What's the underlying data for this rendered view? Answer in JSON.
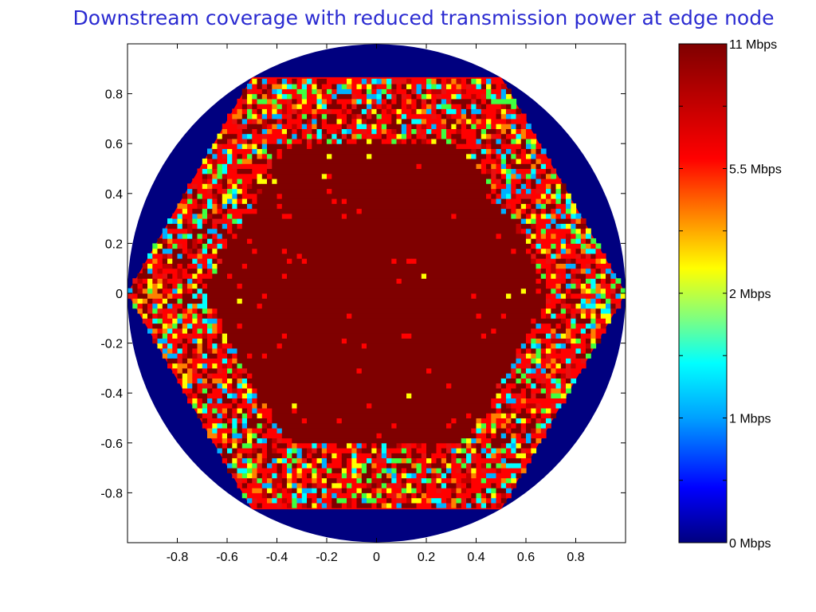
{
  "chart_data": {
    "type": "heatmap",
    "title": "Downstream coverage with reduced transmission power at edge node",
    "xlim": [
      -1,
      1
    ],
    "ylim": [
      -1,
      1
    ],
    "x_ticks": [
      -0.8,
      -0.6,
      -0.4,
      -0.2,
      0,
      0.2,
      0.4,
      0.6,
      0.8
    ],
    "y_ticks": [
      0.8,
      0.6,
      0.4,
      0.2,
      0,
      -0.2,
      -0.4,
      -0.6,
      -0.8
    ],
    "x_tick_labels": [
      "-0.8",
      "-0.6",
      "-0.4",
      "-0.2",
      "0",
      "0.2",
      "0.4",
      "0.6",
      "0.8"
    ],
    "y_tick_labels": [
      "0.8",
      "0.6",
      "0.4",
      "0.2",
      "0",
      "-0.2",
      "-0.4",
      "-0.6",
      "-0.8"
    ],
    "grid": false,
    "regions": [
      {
        "region": "outside circle (radius 1)",
        "value_mbps": null,
        "color": "#ffffff"
      },
      {
        "region": "circle outside hexagon edge",
        "value_mbps": 0
      },
      {
        "region": "hexagon edge band (mixed)",
        "value_mbps_range": [
          1,
          11
        ]
      },
      {
        "region": "inner core (radius ~0.6)",
        "value_mbps": 11
      }
    ],
    "colormap": "jet",
    "colorbar": {
      "min": 0,
      "max": 11,
      "labels": [
        {
          "value": 11,
          "text": "11 Mbps"
        },
        {
          "value": 5.5,
          "text": "5.5 Mbps"
        },
        {
          "value": 2,
          "text": "2 Mbps"
        },
        {
          "value": 1,
          "text": "1 Mbps"
        },
        {
          "value": 0,
          "text": "0 Mbps"
        }
      ],
      "stops": [
        {
          "value": 0,
          "color": "#00007f"
        },
        {
          "value": 0.5,
          "color": "#0000ff"
        },
        {
          "value": 1,
          "color": "#00ffff"
        },
        {
          "value": 1.5,
          "color": "#7fff7f"
        },
        {
          "value": 2,
          "color": "#ffff00"
        },
        {
          "value": 5.5,
          "color": "#ff0000"
        },
        {
          "value": 11,
          "color": "#7f0000"
        }
      ]
    },
    "colors": {
      "title": "#2b2bd1",
      "outer_disk": "#00007f",
      "core": "#7f0000",
      "edge_mix": [
        "#ff0000",
        "#ff0000",
        "#e81010",
        "#c00000",
        "#ffff00",
        "#00ffff",
        "#40ff40",
        "#ff8000",
        "#00b0ff"
      ]
    }
  }
}
